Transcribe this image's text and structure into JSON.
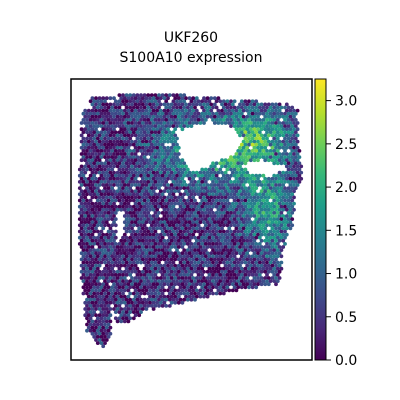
{
  "chart_data": {
    "type": "heatmap",
    "title_line1": "UKF260",
    "title_line2": "S100A10 expression",
    "xlabel": "",
    "ylabel": "",
    "colorbar": {
      "colormap": "viridis",
      "range": [
        0.0,
        3.25
      ],
      "ticks": [
        {
          "value": 0.0,
          "label": "0.0"
        },
        {
          "value": 0.5,
          "label": "0.5"
        },
        {
          "value": 1.0,
          "label": "1.0"
        },
        {
          "value": 1.5,
          "label": "1.5"
        },
        {
          "value": 2.0,
          "label": "2.0"
        },
        {
          "value": 2.5,
          "label": "2.5"
        },
        {
          "value": 3.0,
          "label": "3.0"
        }
      ]
    },
    "grid": false,
    "regions": [
      {
        "region": "left-strip",
        "typical_value": 0.4
      },
      {
        "region": "lower-center",
        "typical_value": 0.5
      },
      {
        "region": "upper-center",
        "typical_value": 1.9
      },
      {
        "region": "right-band",
        "typical_value": 2.4
      },
      {
        "region": "lower-right",
        "typical_value": 1.6
      }
    ],
    "colors": {
      "viridis": [
        "#440154",
        "#482878",
        "#3e4a89",
        "#31688e",
        "#26828e",
        "#1f9e89",
        "#35b779",
        "#6ece58",
        "#b5de2b",
        "#fde725"
      ]
    }
  }
}
